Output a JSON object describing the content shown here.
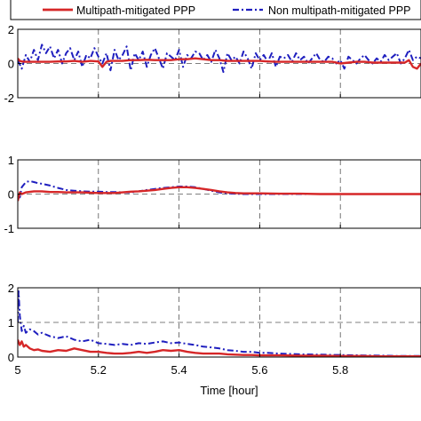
{
  "chart_data": [
    {
      "type": "line",
      "title": "",
      "xlabel": "",
      "ylabel": "",
      "xlim": [
        5,
        6
      ],
      "ylim": [
        -2,
        2
      ],
      "yticks": [
        -2,
        0,
        2
      ],
      "yticklabels": [
        "-2",
        "0",
        "2"
      ],
      "grid": true,
      "legend": {
        "placement": "top-right",
        "entries": [
          "Multipath-mitigated PPP",
          "Non multipath-mitigated PPP"
        ]
      },
      "series": [
        {
          "name": "Multipath-mitigated PPP",
          "x": [
            5.0,
            5.005,
            5.01,
            5.02,
            5.04,
            5.06,
            5.08,
            5.1,
            5.12,
            5.14,
            5.16,
            5.18,
            5.2,
            5.21,
            5.22,
            5.23,
            5.24,
            5.26,
            5.28,
            5.3,
            5.32,
            5.34,
            5.36,
            5.38,
            5.4,
            5.42,
            5.44,
            5.46,
            5.48,
            5.5,
            5.52,
            5.54,
            5.56,
            5.58,
            5.6,
            5.62,
            5.64,
            5.66,
            5.68,
            5.7,
            5.72,
            5.74,
            5.76,
            5.78,
            5.8,
            5.82,
            5.84,
            5.86,
            5.88,
            5.9,
            5.92,
            5.94,
            5.96,
            5.97,
            5.98,
            5.99,
            6.0
          ],
          "y": [
            0.3,
            0.15,
            0.12,
            0.1,
            0.1,
            0.1,
            0.1,
            0.12,
            0.12,
            0.15,
            0.1,
            0.15,
            0.12,
            -0.2,
            0.1,
            0.15,
            0.15,
            0.15,
            0.2,
            0.2,
            0.22,
            0.2,
            0.2,
            0.2,
            0.25,
            0.25,
            0.3,
            0.25,
            0.2,
            0.2,
            0.15,
            0.15,
            0.15,
            0.15,
            0.15,
            0.12,
            0.1,
            0.1,
            0.1,
            0.1,
            0.1,
            0.1,
            0.1,
            0.1,
            0.0,
            0.05,
            0.1,
            0.1,
            0.05,
            0.05,
            0.05,
            0.05,
            0.05,
            0.2,
            -0.2,
            -0.3,
            0.0
          ]
        },
        {
          "name": "Non multipath-mitigated PPP",
          "x": [
            5.0,
            5.01,
            5.02,
            5.03,
            5.04,
            5.05,
            5.06,
            5.07,
            5.08,
            5.09,
            5.1,
            5.11,
            5.12,
            5.13,
            5.14,
            5.15,
            5.16,
            5.17,
            5.18,
            5.19,
            5.2,
            5.21,
            5.22,
            5.23,
            5.24,
            5.25,
            5.26,
            5.27,
            5.28,
            5.29,
            5.3,
            5.31,
            5.32,
            5.33,
            5.34,
            5.35,
            5.36,
            5.37,
            5.38,
            5.39,
            5.4,
            5.41,
            5.42,
            5.43,
            5.44,
            5.45,
            5.46,
            5.47,
            5.48,
            5.49,
            5.5,
            5.51,
            5.52,
            5.53,
            5.54,
            5.55,
            5.56,
            5.57,
            5.58,
            5.59,
            5.6,
            5.61,
            5.62,
            5.63,
            5.64,
            5.65,
            5.66,
            5.67,
            5.68,
            5.69,
            5.7,
            5.71,
            5.72,
            5.73,
            5.74,
            5.75,
            5.76,
            5.77,
            5.78,
            5.79,
            5.8,
            5.81,
            5.82,
            5.83,
            5.84,
            5.85,
            5.86,
            5.87,
            5.88,
            5.89,
            5.9,
            5.91,
            5.92,
            5.93,
            5.94,
            5.95,
            5.96,
            5.97,
            5.98,
            5.99,
            6.0
          ],
          "y": [
            0.2,
            -0.3,
            0.5,
            0.1,
            0.8,
            0.2,
            1.1,
            0.6,
            1.0,
            0.3,
            0.8,
            0.0,
            0.6,
            0.9,
            0.2,
            0.7,
            -0.2,
            0.5,
            0.3,
            0.9,
            0.4,
            0.0,
            0.6,
            -0.4,
            0.8,
            0.2,
            0.5,
            1.0,
            -0.4,
            0.6,
            0.2,
            0.7,
            -0.2,
            0.5,
            0.9,
            0.3,
            -0.3,
            0.6,
            0.4,
            0.2,
            0.8,
            -0.2,
            0.5,
            0.3,
            0.7,
            0.6,
            0.2,
            0.5,
            0.1,
            0.8,
            0.3,
            -0.5,
            0.6,
            0.2,
            0.4,
            0.0,
            0.7,
            0.3,
            -0.3,
            0.6,
            0.2,
            0.5,
            0.1,
            0.6,
            -0.2,
            0.4,
            0.3,
            0.5,
            0.1,
            0.6,
            0.2,
            0.4,
            0.0,
            0.3,
            0.6,
            0.2,
            0.1,
            0.4,
            0.3,
            0.0,
            0.2,
            -0.3,
            0.4,
            0.2,
            0.0,
            0.3,
            0.5,
            0.2,
            0.0,
            0.3,
            0.1,
            0.5,
            0.2,
            0.4,
            0.6,
            0.0,
            0.3,
            0.8,
            0.2,
            0.4,
            0.3
          ]
        }
      ]
    },
    {
      "type": "line",
      "title": "",
      "xlabel": "",
      "ylabel": "",
      "xlim": [
        5,
        6
      ],
      "ylim": [
        -1,
        1
      ],
      "yticks": [
        -1,
        0,
        1
      ],
      "yticklabels": [
        "-1",
        "0",
        "1"
      ],
      "grid": true,
      "series": [
        {
          "name": "Multipath-mitigated PPP",
          "x": [
            5.0,
            5.005,
            5.01,
            5.02,
            5.04,
            5.06,
            5.08,
            5.1,
            5.12,
            5.14,
            5.16,
            5.18,
            5.2,
            5.22,
            5.24,
            5.26,
            5.28,
            5.3,
            5.32,
            5.34,
            5.36,
            5.38,
            5.4,
            5.42,
            5.44,
            5.46,
            5.48,
            5.5,
            5.52,
            5.54,
            5.56,
            5.58,
            5.6,
            5.65,
            5.7,
            5.75,
            5.8,
            5.85,
            5.9,
            5.95,
            6.0
          ],
          "y": [
            -0.2,
            0.05,
            0.0,
            0.05,
            0.08,
            0.08,
            0.06,
            0.06,
            0.05,
            0.05,
            0.05,
            0.04,
            0.03,
            0.03,
            0.03,
            0.05,
            0.07,
            0.08,
            0.1,
            0.12,
            0.15,
            0.18,
            0.2,
            0.2,
            0.18,
            0.15,
            0.12,
            0.08,
            0.05,
            0.03,
            0.02,
            0.02,
            0.02,
            0.01,
            0.01,
            0.0,
            0.0,
            0.0,
            0.0,
            0.0,
            0.0
          ]
        },
        {
          "name": "Non multipath-mitigated PPP",
          "x": [
            5.0,
            5.005,
            5.01,
            5.02,
            5.03,
            5.04,
            5.05,
            5.06,
            5.08,
            5.1,
            5.12,
            5.14,
            5.16,
            5.18,
            5.2,
            5.22,
            5.24,
            5.26,
            5.28,
            5.3,
            5.32,
            5.34,
            5.36,
            5.38,
            5.4,
            5.42,
            5.44,
            5.46,
            5.48,
            5.5,
            5.52,
            5.54,
            5.56,
            5.58,
            5.6,
            5.65,
            5.7,
            5.75,
            5.8,
            5.85,
            5.9,
            5.95,
            6.0
          ],
          "y": [
            0.0,
            -0.1,
            0.2,
            0.35,
            0.38,
            0.35,
            0.32,
            0.3,
            0.25,
            0.18,
            0.12,
            0.1,
            0.08,
            0.07,
            0.07,
            0.06,
            0.06,
            0.05,
            0.05,
            0.08,
            0.12,
            0.15,
            0.18,
            0.2,
            0.22,
            0.22,
            0.2,
            0.15,
            0.1,
            0.05,
            0.02,
            0.01,
            0.0,
            0.0,
            0.0,
            0.0,
            0.0,
            0.0,
            0.0,
            0.0,
            0.0,
            0.0,
            0.0
          ]
        }
      ]
    },
    {
      "type": "line",
      "title": "",
      "xlabel": "Time [hour]",
      "ylabel": "",
      "xlim": [
        5,
        6
      ],
      "ylim": [
        0,
        2
      ],
      "yticks": [
        0,
        1,
        2
      ],
      "yticklabels": [
        "0",
        "1",
        "2"
      ],
      "xticks": [
        5,
        5.2,
        5.4,
        5.6,
        5.8
      ],
      "xticklabels": [
        "5",
        "5.2",
        "5.4",
        "5.6",
        "5.8"
      ],
      "grid": true,
      "series": [
        {
          "name": "Multipath-mitigated PPP",
          "x": [
            5.0,
            5.005,
            5.01,
            5.015,
            5.02,
            5.03,
            5.04,
            5.05,
            5.06,
            5.08,
            5.1,
            5.12,
            5.14,
            5.16,
            5.18,
            5.2,
            5.22,
            5.24,
            5.26,
            5.28,
            5.3,
            5.32,
            5.34,
            5.36,
            5.38,
            5.4,
            5.42,
            5.44,
            5.46,
            5.48,
            5.5,
            5.52,
            5.54,
            5.56,
            5.58,
            5.6,
            5.65,
            5.7,
            5.75,
            5.8,
            5.85,
            5.9,
            5.95,
            6.0
          ],
          "y": [
            0.5,
            0.35,
            0.45,
            0.3,
            0.35,
            0.25,
            0.2,
            0.22,
            0.18,
            0.15,
            0.2,
            0.18,
            0.25,
            0.2,
            0.15,
            0.15,
            0.12,
            0.1,
            0.1,
            0.12,
            0.15,
            0.12,
            0.15,
            0.2,
            0.18,
            0.2,
            0.15,
            0.12,
            0.1,
            0.1,
            0.1,
            0.08,
            0.07,
            0.06,
            0.06,
            0.05,
            0.05,
            0.04,
            0.04,
            0.03,
            0.03,
            0.02,
            0.02,
            0.02
          ]
        },
        {
          "name": "Non multipath-mitigated PPP",
          "x": [
            5.0,
            5.002,
            5.005,
            5.01,
            5.015,
            5.02,
            5.03,
            5.04,
            5.05,
            5.06,
            5.08,
            5.1,
            5.12,
            5.14,
            5.16,
            5.18,
            5.2,
            5.22,
            5.24,
            5.26,
            5.28,
            5.3,
            5.32,
            5.34,
            5.36,
            5.38,
            5.4,
            5.42,
            5.44,
            5.46,
            5.48,
            5.5,
            5.52,
            5.54,
            5.56,
            5.58,
            5.6,
            5.62,
            5.65,
            5.7,
            5.75,
            5.8,
            5.85,
            5.9,
            5.95,
            6.0
          ],
          "y": [
            1.0,
            1.9,
            1.2,
            0.75,
            0.9,
            0.7,
            0.8,
            0.75,
            0.65,
            0.7,
            0.6,
            0.55,
            0.6,
            0.5,
            0.45,
            0.5,
            0.4,
            0.38,
            0.35,
            0.38,
            0.35,
            0.4,
            0.38,
            0.42,
            0.45,
            0.4,
            0.42,
            0.38,
            0.35,
            0.3,
            0.28,
            0.25,
            0.2,
            0.18,
            0.15,
            0.15,
            0.12,
            0.12,
            0.1,
            0.08,
            0.07,
            0.06,
            0.05,
            0.04,
            0.03,
            0.03
          ]
        }
      ]
    }
  ],
  "colors": {
    "mitigated": "#d62728",
    "non_mitigated": "#1f1fbf",
    "grid": "#555555"
  }
}
